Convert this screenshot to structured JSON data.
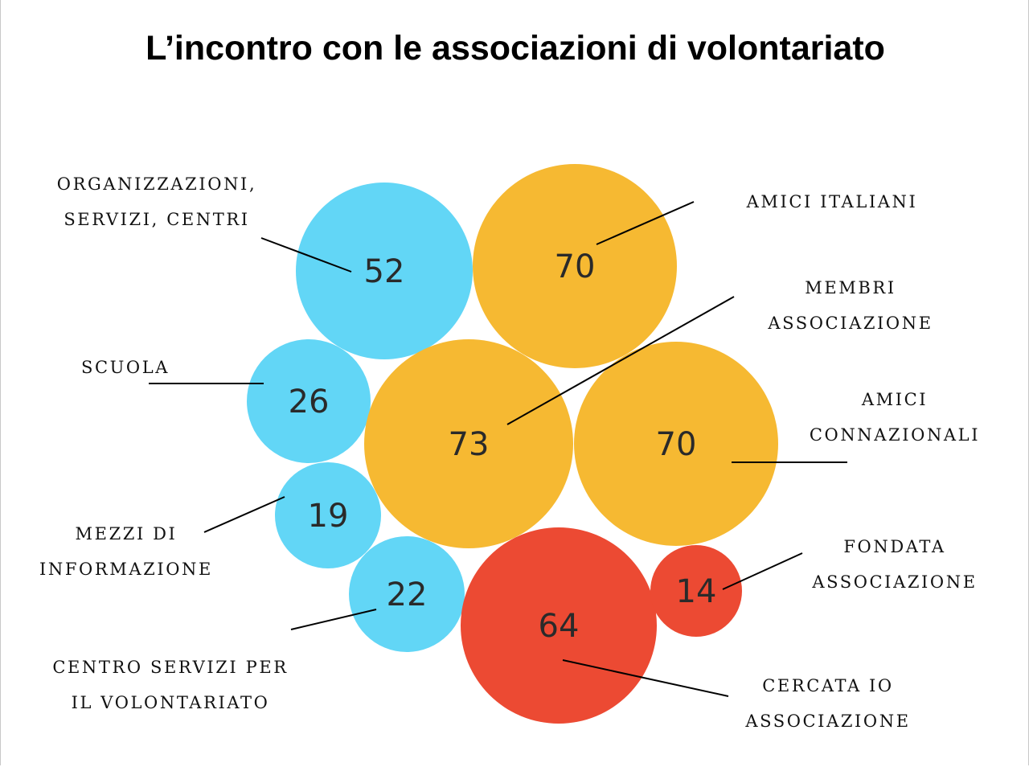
{
  "chart_data": {
    "type": "bubble",
    "title": "L’incontro con le associazioni di volontariato",
    "colors": {
      "blue": "#62d6f6",
      "orange": "#f6b932",
      "red": "#ec4a33"
    },
    "bubbles": [
      {
        "value": 52,
        "label": [
          "ORGANIZZAZIONI,",
          "SERVIZI, CENTRI"
        ],
        "color": "#62d6f6"
      },
      {
        "value": 70,
        "label": [
          "AMICI ITALIANI"
        ],
        "color": "#f6b932"
      },
      {
        "value": 26,
        "label": [
          "SCUOLA"
        ],
        "color": "#62d6f6"
      },
      {
        "value": 73,
        "label": [
          "MEMBRI",
          "ASSOCIAZIONE"
        ],
        "color": "#f6b932"
      },
      {
        "value": 70,
        "label": [
          "AMICI",
          "CONNAZIONALI"
        ],
        "color": "#f6b932"
      },
      {
        "value": 19,
        "label": [
          "MEZZI DI",
          "INFORMAZIONE"
        ],
        "color": "#62d6f6"
      },
      {
        "value": 22,
        "label": [
          "CENTRO SERVIZI PER",
          "IL VOLONTARIATO"
        ],
        "color": "#62d6f6"
      },
      {
        "value": 64,
        "label": [
          "CERCATA IO",
          "ASSOCIAZIONE"
        ],
        "color": "#ec4a33"
      },
      {
        "value": 14,
        "label": [
          "FONDATA",
          "ASSOCIAZIONE"
        ],
        "color": "#ec4a33"
      }
    ]
  }
}
